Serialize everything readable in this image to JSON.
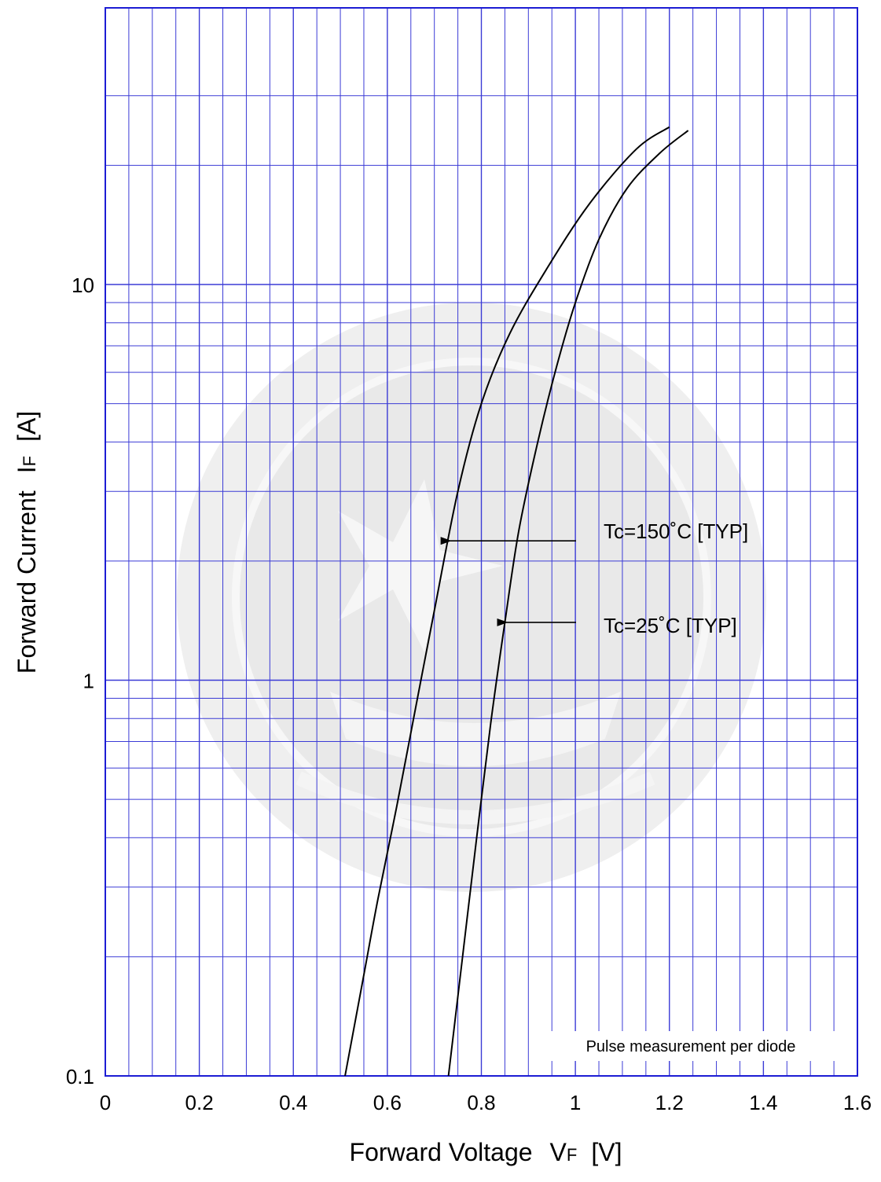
{
  "chart_data": {
    "type": "line",
    "xlabel": {
      "main": "Forward Voltage",
      "sym": "V",
      "sub": "F",
      "unit": "[V]"
    },
    "ylabel": {
      "main": "Forward Current",
      "sym": "I",
      "sub": "F",
      "unit": "[A]"
    },
    "xlim": [
      0,
      1.6
    ],
    "ylim": [
      0.1,
      30
    ],
    "yscale": "log",
    "grid": true,
    "x_ticks": [
      0,
      0.2,
      0.4,
      0.6,
      0.8,
      1.0,
      1.2,
      1.4,
      1.6
    ],
    "x_tick_labels": [
      "0",
      "0.2",
      "0.4",
      "0.6",
      "0.8",
      "1",
      "1.2",
      "1.4",
      "1.6"
    ],
    "y_ticks": [
      0.1,
      1,
      10
    ],
    "y_tick_labels": [
      "0.1",
      "1",
      "10"
    ],
    "series": [
      {
        "name": "Tc=150˚C [TYP]",
        "x": [
          0.51,
          0.55,
          0.58,
          0.62,
          0.66,
          0.7,
          0.75,
          0.8,
          0.86,
          0.94,
          1.03,
          1.13,
          1.2
        ],
        "y": [
          0.1,
          0.18,
          0.28,
          0.48,
          0.85,
          1.5,
          3.0,
          5.0,
          7.5,
          11.0,
          16.0,
          22.0,
          25.0
        ]
      },
      {
        "name": "Tc=25˚C [TYP]",
        "x": [
          0.73,
          0.76,
          0.79,
          0.82,
          0.85,
          0.88,
          0.92,
          0.96,
          1.0,
          1.05,
          1.11,
          1.18,
          1.24
        ],
        "y": [
          0.1,
          0.2,
          0.4,
          0.78,
          1.4,
          2.4,
          4.0,
          6.2,
          9.0,
          13.0,
          17.5,
          21.5,
          24.5
        ]
      }
    ],
    "annotations": [
      {
        "text": "Tc=150˚C [TYP]",
        "series": 0,
        "arrow_to": [
          0.73,
          2.25
        ]
      },
      {
        "text": "Tc=25˚C [TYP]",
        "series": 1,
        "arrow_to": [
          0.85,
          1.4
        ]
      }
    ],
    "note": "Pulse measurement per diode",
    "colors": {
      "grid": "#3b3bd6",
      "frame": "#1d1dd4",
      "curve": "#000000",
      "watermark": "#ececec"
    }
  }
}
